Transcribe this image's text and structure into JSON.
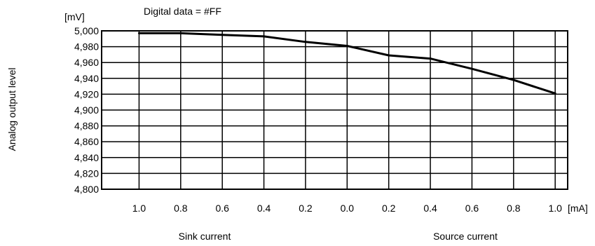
{
  "chart_data": {
    "type": "line",
    "annotation": "Digital data = #FF",
    "ylabel": "Analog output level",
    "y_unit": "[mV]",
    "x_unit": "[mA]",
    "x_group_labels": [
      "Sink current",
      "Source current"
    ],
    "categories": [
      "1.0",
      "0.8",
      "0.6",
      "0.4",
      "0.2",
      "0.0",
      "0.2",
      "0.4",
      "0.6",
      "0.8",
      "1.0"
    ],
    "y_ticks": [
      "4,800",
      "4,820",
      "4,840",
      "4,860",
      "4,880",
      "4,900",
      "4,920",
      "4,940",
      "4,960",
      "4,980",
      "5,000"
    ],
    "ylim": [
      4800,
      5000
    ],
    "grid": true,
    "series": [
      {
        "values": [
          4997,
          4997,
          4995,
          4993,
          4986,
          4981,
          4969,
          4965,
          4952,
          4938,
          4921
        ]
      }
    ]
  }
}
